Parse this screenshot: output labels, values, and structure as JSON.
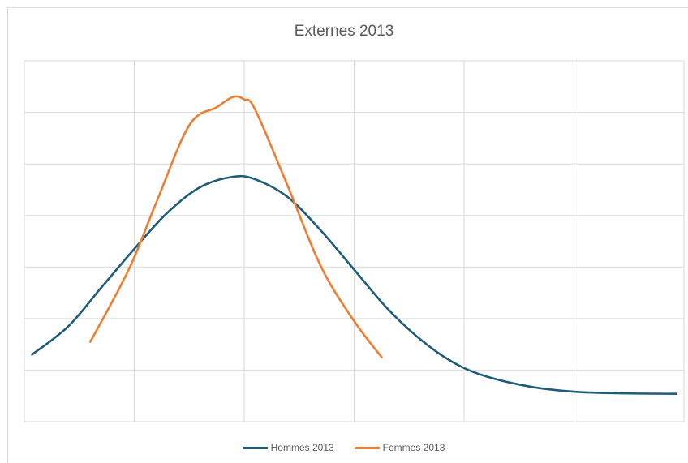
{
  "chart_data": {
    "type": "line",
    "title": "Externes 2013",
    "xlabel": "",
    "ylabel": "",
    "xlim": [
      0,
      6
    ],
    "ylim": [
      0,
      7
    ],
    "grid": true,
    "smooth": true,
    "legend": "bottom",
    "series": [
      {
        "name": "Hommes 2013",
        "color": "#1f5c7a",
        "x": [
          0.07,
          0.4,
          0.7,
          1.0,
          1.3,
          1.6,
          1.9,
          2.1,
          2.4,
          2.7,
          3.0,
          3.3,
          3.6,
          3.9,
          4.2,
          4.6,
          5.0,
          5.4,
          5.93
        ],
        "y": [
          1.3,
          1.85,
          2.6,
          3.35,
          4.05,
          4.55,
          4.75,
          4.7,
          4.35,
          3.7,
          2.95,
          2.2,
          1.6,
          1.15,
          0.88,
          0.68,
          0.58,
          0.55,
          0.54
        ]
      },
      {
        "name": "Femmes 2013",
        "color": "#ed7d31",
        "x": [
          0.6,
          0.95,
          1.2,
          1.5,
          1.75,
          1.9,
          2.0,
          2.1,
          2.4,
          2.7,
          3.0,
          3.25
        ],
        "y": [
          1.55,
          2.95,
          4.25,
          5.75,
          6.1,
          6.3,
          6.25,
          6.05,
          4.55,
          3.0,
          1.95,
          1.25
        ]
      }
    ]
  }
}
